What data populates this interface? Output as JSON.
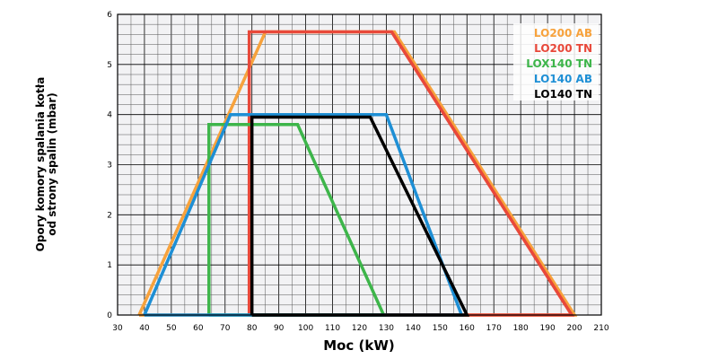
{
  "chart_data": {
    "type": "line",
    "xlabel": "Moc (kW)",
    "ylabel_line1": "Opory komory spalania kotła",
    "ylabel_line2": "od strony spalin (mbar)",
    "xlim": [
      30,
      210
    ],
    "ylim": [
      0,
      6
    ],
    "x_ticks": [
      "30",
      "40",
      "50",
      "60",
      "70",
      "80",
      "90",
      "100",
      "110",
      "120",
      "130",
      "140",
      "150",
      "160",
      "170",
      "180",
      "190",
      "200",
      "210"
    ],
    "y_ticks": [
      "0",
      "1",
      "2",
      "3",
      "4",
      "5",
      "6"
    ],
    "grid": true,
    "legend_position": "top-right",
    "series": [
      {
        "name": "LO200 AB",
        "color": "#f7a23c",
        "x": [
          38,
          85,
          133,
          200,
          38
        ],
        "y": [
          0,
          5.65,
          5.65,
          0,
          0
        ]
      },
      {
        "name": "LO200 TN",
        "color": "#e8483a",
        "x": [
          79,
          79,
          132,
          199,
          79
        ],
        "y": [
          0,
          5.65,
          5.65,
          0,
          0
        ]
      },
      {
        "name": "LOX140 TN",
        "color": "#3db54a",
        "x": [
          64,
          64,
          97,
          129,
          64
        ],
        "y": [
          0,
          3.8,
          3.8,
          0,
          0
        ]
      },
      {
        "name": "LO140 AB",
        "color": "#1e8fd5",
        "x": [
          40,
          72,
          130,
          158,
          40
        ],
        "y": [
          0,
          4.0,
          4.0,
          0,
          0
        ]
      },
      {
        "name": "LO140 TN",
        "color": "#000000",
        "x": [
          80,
          80,
          124,
          160,
          80
        ],
        "y": [
          0,
          3.95,
          3.95,
          0,
          0
        ]
      }
    ]
  }
}
